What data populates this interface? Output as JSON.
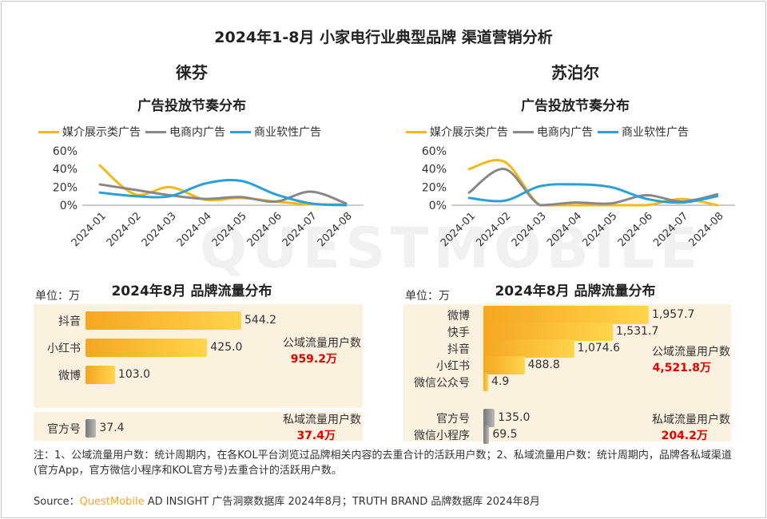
{
  "title": "2024年1-8月 小家电行业典型品牌 渠道营销分析",
  "watermark": "QUESTMOBILE",
  "legend": [
    "媒介展示类广告",
    "电商内广告",
    "商业软性广告"
  ],
  "colors": {
    "media": "#f5b915",
    "ecom": "#888888",
    "soft": "#2a9fd8",
    "accent_red": "#e00000",
    "gold": "#f5a623"
  },
  "y_ticks": [
    "60%",
    "40%",
    "20%",
    "0%"
  ],
  "unit_label": "单位：万",
  "public_label": "公域流量用户数",
  "private_label": "私域流量用户数",
  "chart_data": [
    {
      "type": "line",
      "brand": "徕芬",
      "title": "广告投放节奏分布",
      "x": [
        "2024-01",
        "2024-02",
        "2024-03",
        "2024-04",
        "2024-05",
        "2024-06",
        "2024-07",
        "2024-08"
      ],
      "ylim": [
        0,
        60
      ],
      "series": [
        {
          "name": "媒介展示类广告",
          "values": [
            44,
            12,
            20,
            6,
            8,
            4,
            1,
            1
          ]
        },
        {
          "name": "电商内广告",
          "values": [
            23,
            17,
            11,
            7,
            9,
            4,
            15,
            2
          ]
        },
        {
          "name": "商业软性广告",
          "values": [
            14,
            10,
            10,
            24,
            27,
            12,
            2,
            0
          ]
        }
      ]
    },
    {
      "type": "line",
      "brand": "苏泊尔",
      "title": "广告投放节奏分布",
      "x": [
        "2024-01",
        "2024-02",
        "2024-03",
        "2024-04",
        "2024-05",
        "2024-06",
        "2024-07",
        "2024-08"
      ],
      "ylim": [
        0,
        60
      ],
      "series": [
        {
          "name": "媒介展示类广告",
          "values": [
            40,
            48,
            0,
            0,
            0,
            0,
            7,
            0
          ]
        },
        {
          "name": "电商内广告",
          "values": [
            14,
            40,
            0,
            3,
            2,
            11,
            4,
            12
          ]
        },
        {
          "name": "商业软性广告",
          "values": [
            8,
            5,
            21,
            23,
            20,
            7,
            3,
            10
          ]
        }
      ]
    },
    {
      "type": "bar",
      "brand": "徕芬",
      "title": "2024年8月 品牌流量分布",
      "public": {
        "categories": [
          "抖音",
          "小红书",
          "微博"
        ],
        "values": [
          544.2,
          425.0,
          103.0
        ],
        "labels": [
          "544.2",
          "425.0",
          "103.0"
        ],
        "total": "959.2万"
      },
      "private": {
        "categories": [
          "官方号"
        ],
        "values": [
          37.4
        ],
        "labels": [
          "37.4"
        ],
        "total": "37.4万"
      }
    },
    {
      "type": "bar",
      "brand": "苏泊尔",
      "title": "2024年8月 品牌流量分布",
      "public": {
        "categories": [
          "微博",
          "快手",
          "抖音",
          "小红书",
          "微信公众号"
        ],
        "values": [
          1957.7,
          1531.7,
          1074.6,
          488.8,
          4.9
        ],
        "labels": [
          "1,957.7",
          "1,531.7",
          "1,074.6",
          "488.8",
          "4.9"
        ],
        "total": "4,521.8万"
      },
      "private": {
        "categories": [
          "官方号",
          "微信小程序"
        ],
        "values": [
          135.0,
          69.5
        ],
        "labels": [
          "135.0",
          "69.5"
        ],
        "total": "204.2万"
      }
    }
  ],
  "note": "注：1、公域流量用户数：统计周期内，在各KOL平台浏览过品牌相关内容的去重合计的活跃用户数；2、私域流量用户数：统计周期内，品牌各私域渠道(官方App，官方微信小程序和KOL官方号)去重合计的活跃用户数。",
  "source_prefix": "Source：",
  "source_brand": "QuestMobile",
  "source_rest": " AD INSIGHT 广告洞察数据库 2024年8月；TRUTH BRAND 品牌数据库 2024年8月"
}
